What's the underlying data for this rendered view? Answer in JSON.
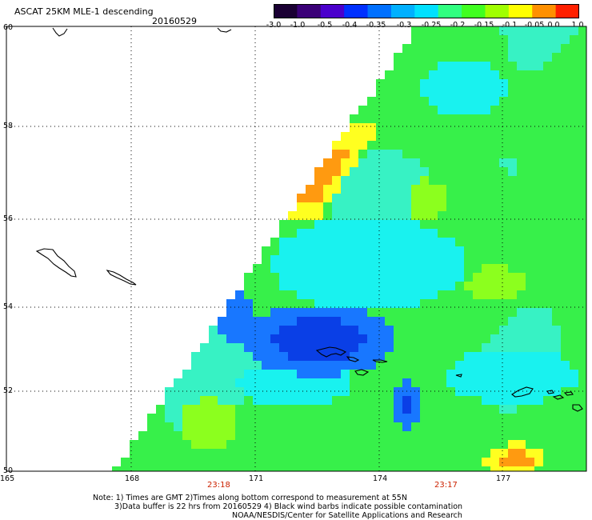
{
  "title": "ASCAT 25KM MLE-1 descending",
  "date": "20160529",
  "colorbar": {
    "labels": [
      "-3.0",
      "-1.0",
      "-0.5",
      "-0.4",
      "-0.35",
      "-0.3",
      "-0.25",
      "-0.2",
      "-0.15",
      "-0.1",
      "-0.05",
      "0.0",
      "1.0"
    ],
    "colors": [
      "#1a0033",
      "#3a0077",
      "#4a00cc",
      "#0030ff",
      "#0070ff",
      "#00b0ff",
      "#00e0ff",
      "#30ff80",
      "#40ff20",
      "#a0ff00",
      "#ffff00",
      "#ff9000",
      "#ff2000"
    ]
  },
  "axes": {
    "lon_ticks": [
      "165",
      "168",
      "171",
      "174",
      "177"
    ],
    "lat_ticks": [
      "60",
      "58",
      "56",
      "54",
      "52",
      "50"
    ]
  },
  "times": [
    "23:18",
    "23:17"
  ],
  "notes": {
    "line1": "Note: 1) Times are GMT 2)Times along bottom correspond to measurement at 55N",
    "line2": "3)Data buffer is 22 hrs from 20160529 4) Black wind barbs indicate possible contamination",
    "line3": "NOAA/NESDIS/Center for Satellite Applications and Research"
  },
  "field_colors": {
    "deep_blue": "#0a3fe6",
    "blue": "#1877ff",
    "cyan": "#19f2ef",
    "aqua": "#37f2c4",
    "green": "#37f04a",
    "lime": "#8cff1e",
    "yellow": "#ffff20",
    "orange": "#ff9a10",
    "red": "#ff3a10"
  }
}
